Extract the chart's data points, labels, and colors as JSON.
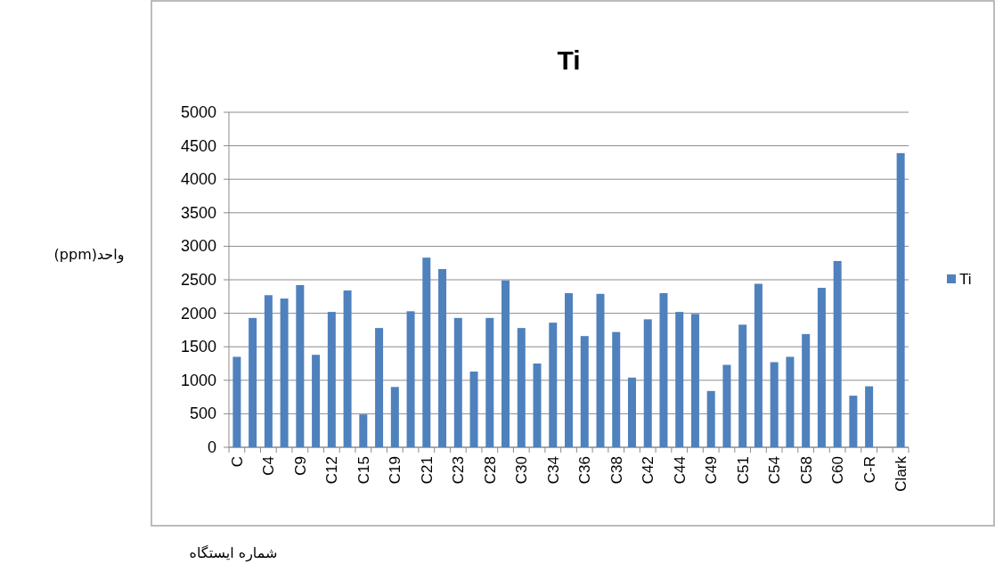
{
  "chart_data": {
    "type": "bar",
    "title": "Ti",
    "ylabel": "واحد(ppm)",
    "xlabel": "شماره ایستگاه",
    "categories": [
      "C",
      null,
      "C4",
      null,
      "C9",
      null,
      "C12",
      null,
      "C15",
      null,
      "C19",
      null,
      "C21",
      null,
      "C23",
      null,
      "C28",
      null,
      "C30",
      null,
      "C34",
      null,
      "C36",
      null,
      "C38",
      null,
      "C42",
      null,
      "C44",
      null,
      "C49",
      null,
      "C51",
      null,
      "C54",
      null,
      "C58",
      null,
      "C60",
      null,
      "C-R",
      null,
      "Clark"
    ],
    "series": [
      {
        "name": "Ti",
        "color": "#4f81bd",
        "values": [
          1350,
          1930,
          2270,
          2220,
          2420,
          1380,
          2020,
          2340,
          490,
          1780,
          900,
          2030,
          2830,
          2660,
          1930,
          1130,
          1930,
          2490,
          1780,
          1250,
          1860,
          2300,
          1660,
          2290,
          1720,
          1040,
          1910,
          2300,
          2020,
          1990,
          840,
          1230,
          1830,
          2440,
          1270,
          1350,
          1690,
          2380,
          2780,
          770,
          910,
          null,
          4390
        ]
      }
    ],
    "ylim": [
      0,
      5000
    ],
    "yticks": [
      0,
      500,
      1000,
      1500,
      2000,
      2500,
      3000,
      3500,
      4000,
      4500,
      5000
    ],
    "grid": "y",
    "legend": "right"
  }
}
